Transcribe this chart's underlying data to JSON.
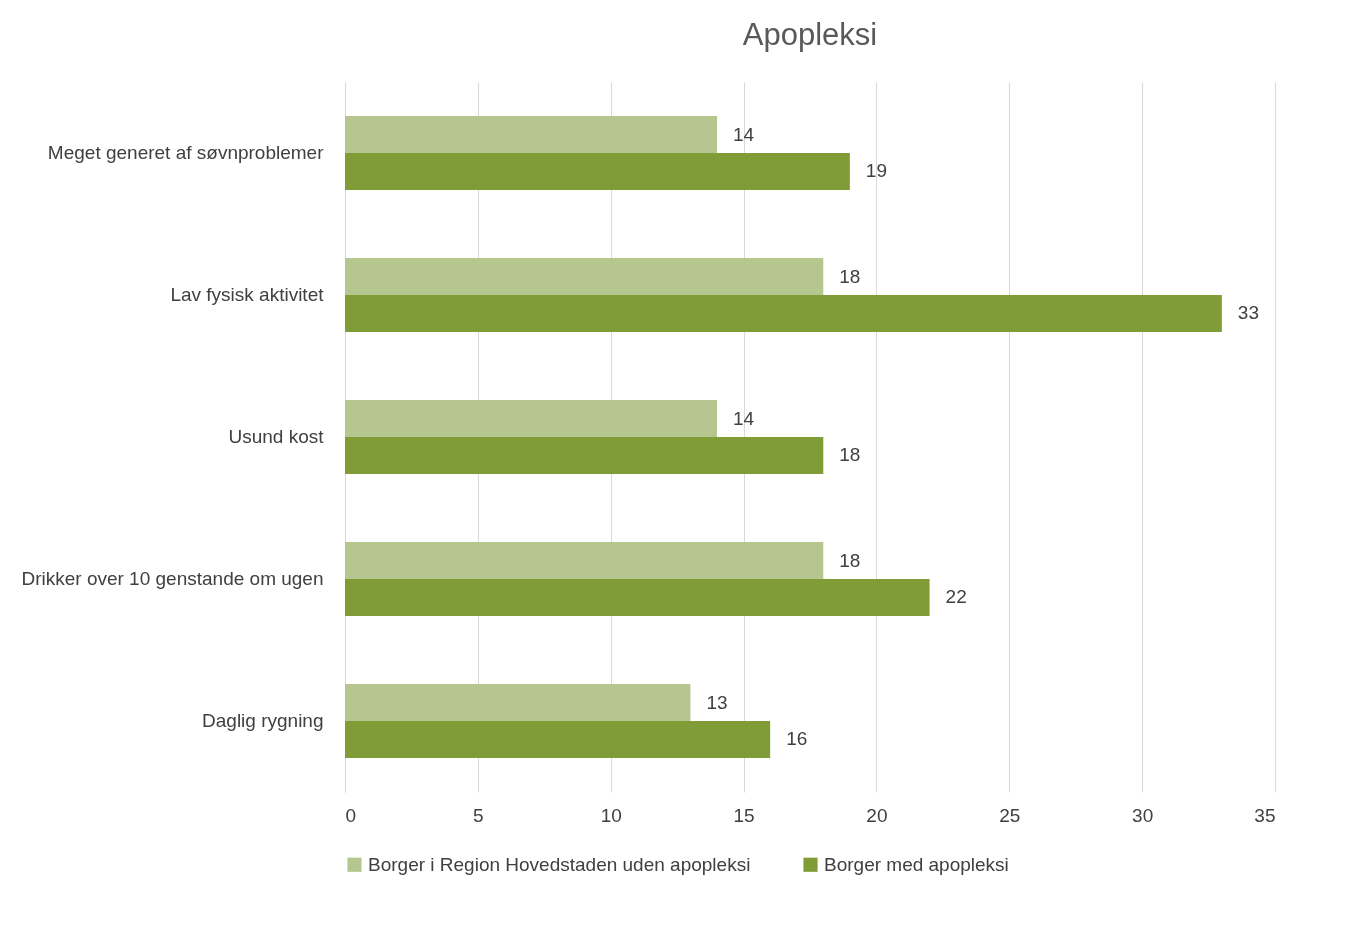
{
  "chart_data": {
    "type": "bar",
    "title": "Apopleksi",
    "orientation": "horizontal",
    "categories": [
      "Meget generet af søvnproblemer",
      "Lav fysisk aktivitet",
      "Usund kost",
      "Drikker over 10 genstande om ugen",
      "Daglig rygning"
    ],
    "series": [
      {
        "name": "Borger i Region Hovedstaden uden apopleksi",
        "color": "#b5c78f",
        "values": [
          14,
          18,
          14,
          18,
          13
        ]
      },
      {
        "name": "Borger med apopleksi",
        "color": "#7f9c36",
        "values": [
          19,
          33,
          18,
          22,
          16
        ]
      }
    ],
    "xlim": [
      0,
      35
    ],
    "xticks": [
      0,
      5,
      10,
      15,
      20,
      25,
      30,
      35
    ],
    "grid": "x",
    "legend": "bottom",
    "data_labels": true
  }
}
